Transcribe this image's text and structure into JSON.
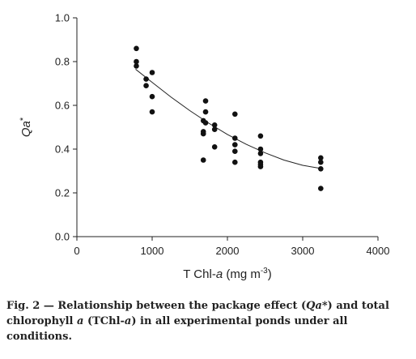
{
  "chart_data": {
    "type": "scatter",
    "xlabel": {
      "prefix": "T Chl-",
      "italic": "a",
      "unit": " (mg m",
      "sup": "-3",
      "close": ")"
    },
    "ylabel": {
      "italic": "Qa",
      "star": "*"
    },
    "xlim": [
      0,
      4000
    ],
    "ylim": [
      0.0,
      1.0
    ],
    "xticks": [
      "0",
      "1000",
      "2000",
      "3000",
      "4000"
    ],
    "yticks": [
      "0.0",
      "0.2",
      "0.4",
      "0.6",
      "0.8",
      "1.0"
    ],
    "grid": false,
    "legend": "none",
    "series": [
      {
        "points": [
          [
            790,
            0.86
          ],
          [
            790,
            0.8
          ],
          [
            790,
            0.78
          ],
          [
            920,
            0.72
          ],
          [
            920,
            0.69
          ],
          [
            1000,
            0.75
          ],
          [
            1000,
            0.64
          ],
          [
            1000,
            0.57
          ],
          [
            1680,
            0.53
          ],
          [
            1680,
            0.48
          ],
          [
            1680,
            0.47
          ],
          [
            1680,
            0.35
          ],
          [
            1710,
            0.62
          ],
          [
            1710,
            0.57
          ],
          [
            1710,
            0.52
          ],
          [
            1830,
            0.51
          ],
          [
            1830,
            0.49
          ],
          [
            1830,
            0.41
          ],
          [
            2100,
            0.56
          ],
          [
            2100,
            0.45
          ],
          [
            2100,
            0.42
          ],
          [
            2100,
            0.39
          ],
          [
            2100,
            0.34
          ],
          [
            2440,
            0.46
          ],
          [
            2440,
            0.4
          ],
          [
            2440,
            0.38
          ],
          [
            2440,
            0.34
          ],
          [
            2440,
            0.33
          ],
          [
            2440,
            0.32
          ],
          [
            3240,
            0.36
          ],
          [
            3240,
            0.34
          ],
          [
            3240,
            0.31
          ],
          [
            3240,
            0.22
          ]
        ]
      }
    ],
    "trend": {
      "x": [
        780,
        1000,
        1250,
        1500,
        1750,
        2000,
        2250,
        2500,
        2750,
        3000,
        3250
      ],
      "y": [
        0.765,
        0.705,
        0.638,
        0.576,
        0.519,
        0.467,
        0.422,
        0.383,
        0.35,
        0.326,
        0.311
      ]
    }
  },
  "caption": {
    "prefix": "Fig. 2 — Relationship between the package effect (",
    "qa_italic": "Qa",
    "after_qa": "*) and total chlorophyll ",
    "a_italic": "a",
    "mid": " (TChl-",
    "a2_italic": "a",
    "suffix": ") in all experimental ponds under all conditions."
  }
}
